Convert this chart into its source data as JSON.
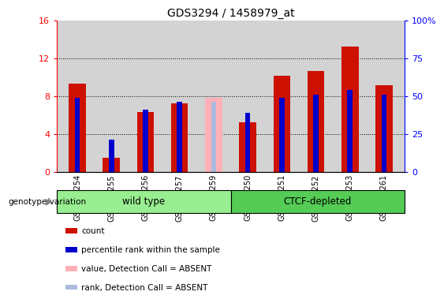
{
  "title": "GDS3294 / 1458979_at",
  "samples": [
    "GSM296254",
    "GSM296255",
    "GSM296256",
    "GSM296257",
    "GSM296259",
    "GSM296250",
    "GSM296251",
    "GSM296252",
    "GSM296253",
    "GSM296261"
  ],
  "count_values": [
    9.3,
    1.5,
    6.3,
    7.2,
    null,
    5.2,
    10.1,
    10.6,
    13.2,
    9.1
  ],
  "rank_values": [
    49.0,
    21.0,
    41.0,
    46.0,
    null,
    39.0,
    49.0,
    51.0,
    54.0,
    51.0
  ],
  "absent_count": [
    null,
    null,
    null,
    null,
    7.8,
    null,
    null,
    null,
    null,
    null
  ],
  "absent_rank": [
    null,
    null,
    null,
    null,
    46.0,
    null,
    null,
    null,
    null,
    null
  ],
  "groups": [
    "wild type",
    "wild type",
    "wild type",
    "wild type",
    "wild type",
    "CTCF-depleted",
    "CTCF-depleted",
    "CTCF-depleted",
    "CTCF-depleted",
    "CTCF-depleted"
  ],
  "group_color_wt": "#98EE90",
  "group_color_ct": "#55CC55",
  "ylim_left": [
    0,
    16
  ],
  "ylim_right": [
    0,
    100
  ],
  "yticks_left": [
    0,
    4,
    8,
    12,
    16
  ],
  "yticks_right": [
    0,
    25,
    50,
    75,
    100
  ],
  "ytick_labels_right": [
    "0",
    "25",
    "50",
    "75",
    "100%"
  ],
  "bar_color": "#CC1100",
  "rank_color": "#0000CC",
  "absent_bar_color": "#FFB0B8",
  "absent_rank_color": "#AABBDD",
  "background_color": "#D3D3D3",
  "title_fontsize": 10,
  "bar_width": 0.5,
  "rank_bar_width": 0.15
}
